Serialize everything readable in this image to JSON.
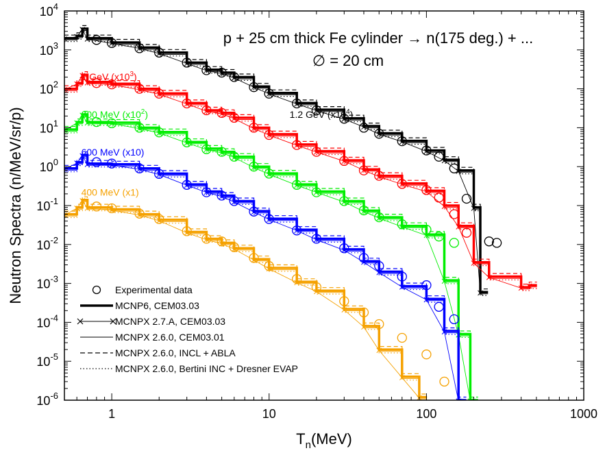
{
  "chart_data": {
    "type": "line",
    "title_line1": "p + 25 cm thick Fe cylinder → n(175 deg.) + ...",
    "title_line2": "∅ = 20 cm",
    "xlabel_main": "T",
    "xlabel_sub": "n",
    "xlabel_tail": "(MeV)",
    "ylabel": "Neutron Spectra (n/MeV/sr/p)",
    "x_scale": "log",
    "y_scale": "log",
    "xlim": [
      0.5,
      1000
    ],
    "ylim": [
      1e-06,
      10000
    ],
    "x_ticks": [
      {
        "v": 1,
        "label": "1"
      },
      {
        "v": 10,
        "label": "10"
      },
      {
        "v": 100,
        "label": "100"
      },
      {
        "v": 1000,
        "label": "1000"
      }
    ],
    "y_ticks": [
      {
        "exp": -6,
        "base": "10",
        "sup": "-6"
      },
      {
        "exp": -5,
        "base": "10",
        "sup": "-5"
      },
      {
        "exp": -4,
        "base": "10",
        "sup": "-4"
      },
      {
        "exp": -3,
        "base": "10",
        "sup": "-3"
      },
      {
        "exp": -2,
        "base": "10",
        "sup": "-2"
      },
      {
        "exp": -1,
        "base": "10",
        "sup": "-1"
      },
      {
        "exp": 0,
        "base": "10",
        "sup": "0"
      },
      {
        "exp": 1,
        "base": "10",
        "sup": "1"
      },
      {
        "exp": 2,
        "base": "10",
        "sup": "2"
      },
      {
        "exp": 3,
        "base": "10",
        "sup": "3"
      },
      {
        "exp": 4,
        "base": "10",
        "sup": "4"
      }
    ],
    "grid": false,
    "legend_position": "bottom-left",
    "legend": [
      {
        "label": "Experimental data",
        "style": "circle"
      },
      {
        "label": "MCNP6, CEM03.03",
        "style": "thick"
      },
      {
        "label": "MCNPX 2.7.A, CEM03.03",
        "style": "cross"
      },
      {
        "label": "MCNPX 2.6.0, CEM03.01",
        "style": "thin"
      },
      {
        "label": "MCNPX 2.6.0, INCL + ABLA",
        "style": "dashed"
      },
      {
        "label": "MCNPX 2.6.0, Bertini INC + Dresner EVAP",
        "style": "dotted"
      }
    ],
    "series": [
      {
        "name": "1.2 GeV (x10^4)",
        "label_main": "1.2 GeV (x10",
        "label_sup": "4",
        "label_tail": ")",
        "color": "#000000",
        "label_at": [
          13.5,
          18
        ],
        "label_anchor": "start",
        "label_dy": 0,
        "experimental": [
          [
            0.8,
            1800
          ],
          [
            1,
            1500
          ],
          [
            1.5,
            1100
          ],
          [
            2,
            850
          ],
          [
            3,
            470
          ],
          [
            4,
            300
          ],
          [
            5,
            260
          ],
          [
            6,
            200
          ],
          [
            8,
            110
          ],
          [
            10,
            75
          ],
          [
            15,
            42
          ],
          [
            20,
            28
          ],
          [
            30,
            17
          ],
          [
            40,
            10
          ],
          [
            50,
            7
          ],
          [
            70,
            4.5
          ],
          [
            100,
            2.6
          ],
          [
            120,
            1.8
          ],
          [
            150,
            0.9
          ],
          [
            180,
            0.15
          ],
          [
            250,
            0.012
          ],
          [
            280,
            0.011
          ]
        ],
        "model": [
          [
            0.5,
            2000
          ],
          [
            0.6,
            2300
          ],
          [
            0.65,
            3500
          ],
          [
            0.7,
            2000
          ],
          [
            1,
            1550
          ],
          [
            1.5,
            1150
          ],
          [
            2,
            850
          ],
          [
            3,
            470
          ],
          [
            4,
            310
          ],
          [
            5,
            260
          ],
          [
            6,
            200
          ],
          [
            8,
            115
          ],
          [
            10,
            78
          ],
          [
            15,
            43
          ],
          [
            20,
            29
          ],
          [
            30,
            17.5
          ],
          [
            40,
            11
          ],
          [
            50,
            7.2
          ],
          [
            70,
            4.6
          ],
          [
            100,
            2.6
          ],
          [
            130,
            1.5
          ],
          [
            160,
            0.8
          ],
          [
            200,
            0.09
          ],
          [
            220,
            0.0006
          ]
        ]
      },
      {
        "name": "1 GeV (x10^3)",
        "label_main": "1 GeV (x10",
        "label_sup": "3",
        "label_tail": ")",
        "color": "#ff0000",
        "label_at": [
          0.64,
          120
        ],
        "label_anchor": "start",
        "label_dy": -8,
        "experimental": [
          [
            0.8,
            140
          ],
          [
            1,
            130
          ],
          [
            1.5,
            100
          ],
          [
            2,
            75
          ],
          [
            3,
            42
          ],
          [
            4,
            28
          ],
          [
            5,
            24
          ],
          [
            6,
            18
          ],
          [
            8,
            10
          ],
          [
            10,
            6.5
          ],
          [
            15,
            3.6
          ],
          [
            20,
            2.4
          ],
          [
            30,
            1.4
          ],
          [
            40,
            0.8
          ],
          [
            50,
            0.58
          ],
          [
            70,
            0.36
          ],
          [
            100,
            0.25
          ],
          [
            120,
            0.16
          ],
          [
            150,
            0.06
          ],
          [
            180,
            0.02
          ]
        ],
        "model": [
          [
            0.5,
            100
          ],
          [
            0.6,
            140
          ],
          [
            0.65,
            230
          ],
          [
            0.7,
            150
          ],
          [
            1,
            135
          ],
          [
            1.5,
            100
          ],
          [
            2,
            76
          ],
          [
            3,
            43
          ],
          [
            4,
            28
          ],
          [
            5,
            24
          ],
          [
            6,
            18
          ],
          [
            8,
            10
          ],
          [
            10,
            6.8
          ],
          [
            15,
            3.7
          ],
          [
            20,
            2.5
          ],
          [
            30,
            1.45
          ],
          [
            40,
            0.85
          ],
          [
            50,
            0.58
          ],
          [
            70,
            0.37
          ],
          [
            100,
            0.24
          ],
          [
            130,
            0.1
          ],
          [
            160,
            0.03
          ],
          [
            200,
            0.0035
          ],
          [
            250,
            0.0015
          ],
          [
            400,
            0.0008
          ],
          [
            450,
            0.0009
          ]
        ]
      },
      {
        "name": "800 MeV (x10^2)",
        "label_main": "800 MeV (x10",
        "label_sup": "2",
        "label_tail": ")",
        "color": "#00ee00",
        "label_at": [
          0.64,
          13
        ],
        "label_anchor": "start",
        "label_dy": -8,
        "experimental": [
          [
            0.8,
            14
          ],
          [
            1,
            13
          ],
          [
            1.5,
            10
          ],
          [
            2,
            7.6
          ],
          [
            3,
            4.2
          ],
          [
            4,
            2.8
          ],
          [
            5,
            2.4
          ],
          [
            6,
            1.8
          ],
          [
            8,
            1.0
          ],
          [
            10,
            0.66
          ],
          [
            15,
            0.34
          ],
          [
            20,
            0.22
          ],
          [
            30,
            0.13
          ],
          [
            40,
            0.075
          ],
          [
            50,
            0.05
          ],
          [
            70,
            0.033
          ],
          [
            100,
            0.024
          ],
          [
            120,
            0.016
          ],
          [
            150,
            0.011
          ]
        ],
        "model": [
          [
            0.5,
            9
          ],
          [
            0.6,
            14
          ],
          [
            0.65,
            22
          ],
          [
            0.7,
            14
          ],
          [
            1,
            13.5
          ],
          [
            1.5,
            10
          ],
          [
            2,
            7.7
          ],
          [
            3,
            4.3
          ],
          [
            4,
            2.9
          ],
          [
            5,
            2.4
          ],
          [
            6,
            1.8
          ],
          [
            8,
            1.0
          ],
          [
            10,
            0.67
          ],
          [
            15,
            0.35
          ],
          [
            20,
            0.23
          ],
          [
            30,
            0.13
          ],
          [
            40,
            0.074
          ],
          [
            50,
            0.05
          ],
          [
            70,
            0.03
          ],
          [
            100,
            0.018
          ],
          [
            130,
            0.0012
          ],
          [
            160,
            5e-05
          ],
          [
            190,
            1e-06
          ]
        ]
      },
      {
        "name": "600 MeV (x10)",
        "label_main": "600 MeV (x10)",
        "label_sup": "",
        "label_tail": "",
        "color": "#0000ff",
        "label_at": [
          0.64,
          1.4
        ],
        "label_anchor": "start",
        "label_dy": -8,
        "experimental": [
          [
            0.8,
            1.3
          ],
          [
            1,
            1.2
          ],
          [
            1.5,
            0.9
          ],
          [
            2,
            0.65
          ],
          [
            3,
            0.34
          ],
          [
            4,
            0.22
          ],
          [
            5,
            0.18
          ],
          [
            6,
            0.13
          ],
          [
            8,
            0.07
          ],
          [
            10,
            0.045
          ],
          [
            15,
            0.023
          ],
          [
            20,
            0.014
          ],
          [
            30,
            0.008
          ],
          [
            40,
            0.0045
          ],
          [
            50,
            0.0028
          ],
          [
            70,
            0.0015
          ],
          [
            100,
            0.0009
          ],
          [
            120,
            0.00025
          ],
          [
            150,
            0.00012
          ]
        ],
        "model": [
          [
            0.5,
            0.9
          ],
          [
            0.6,
            1.3
          ],
          [
            0.65,
            2.0
          ],
          [
            0.7,
            1.2
          ],
          [
            1,
            1.15
          ],
          [
            1.5,
            0.9
          ],
          [
            2,
            0.66
          ],
          [
            3,
            0.35
          ],
          [
            4,
            0.23
          ],
          [
            5,
            0.18
          ],
          [
            6,
            0.13
          ],
          [
            8,
            0.072
          ],
          [
            10,
            0.046
          ],
          [
            15,
            0.024
          ],
          [
            20,
            0.014
          ],
          [
            30,
            0.0075
          ],
          [
            40,
            0.0037
          ],
          [
            50,
            0.002
          ],
          [
            70,
            0.00085
          ],
          [
            100,
            0.0004
          ],
          [
            130,
            6e-05
          ],
          [
            160,
            1e-06
          ]
        ]
      },
      {
        "name": "400 MeV (x1)",
        "label_main": "400 MeV (x1)",
        "label_sup": "",
        "label_tail": "",
        "color": "#f5a100",
        "label_at": [
          0.64,
          0.13
        ],
        "label_anchor": "start",
        "label_dy": -8,
        "experimental": [
          [
            0.8,
            0.095
          ],
          [
            1,
            0.085
          ],
          [
            1.5,
            0.062
          ],
          [
            2,
            0.045
          ],
          [
            3,
            0.022
          ],
          [
            4,
            0.014
          ],
          [
            5,
            0.012
          ],
          [
            6,
            0.0085
          ],
          [
            8,
            0.0045
          ],
          [
            10,
            0.0028
          ],
          [
            15,
            0.0013
          ],
          [
            20,
            0.0008
          ],
          [
            30,
            0.00035
          ],
          [
            40,
            0.00018
          ],
          [
            50,
            9e-05
          ],
          [
            70,
            4e-05
          ],
          [
            100,
            1.5e-05
          ],
          [
            130,
            3e-06
          ]
        ],
        "model": [
          [
            0.5,
            0.06
          ],
          [
            0.6,
            0.09
          ],
          [
            0.65,
            0.14
          ],
          [
            0.7,
            0.09
          ],
          [
            1,
            0.08
          ],
          [
            1.5,
            0.06
          ],
          [
            2,
            0.043
          ],
          [
            3,
            0.021
          ],
          [
            4,
            0.014
          ],
          [
            5,
            0.011
          ],
          [
            6,
            0.008
          ],
          [
            8,
            0.0042
          ],
          [
            10,
            0.0025
          ],
          [
            15,
            0.0011
          ],
          [
            20,
            0.00065
          ],
          [
            30,
            0.00022
          ],
          [
            40,
            8e-05
          ],
          [
            50,
            2e-05
          ],
          [
            70,
            4e-06
          ],
          [
            90,
            1.2e-06
          ]
        ]
      }
    ]
  }
}
